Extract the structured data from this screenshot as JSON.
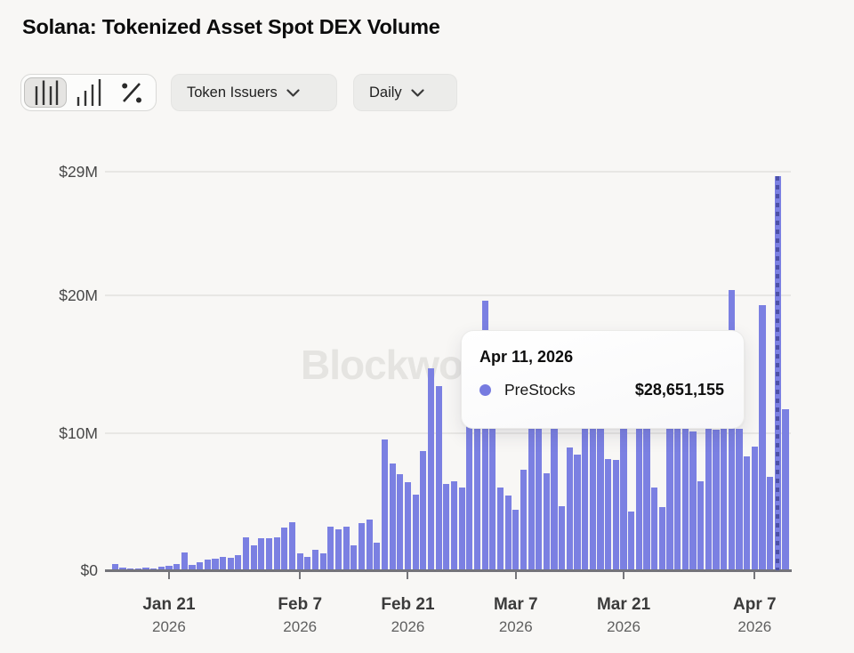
{
  "page": {
    "title": "Solana: Tokenized Asset Spot DEX Volume"
  },
  "toolbar": {
    "chart_type_toggle": {
      "options": [
        "grouped-bar-chart",
        "ascending-bar-chart",
        "percent-change"
      ],
      "selected": "grouped-bar-chart"
    },
    "token_issuers_label": "Token Issuers",
    "interval_label": "Daily"
  },
  "watermark": "Blockworks",
  "tooltip": {
    "date": "Apr 11, 2026",
    "series": "PreStocks",
    "value": "$28,651,155"
  },
  "colors": {
    "bar": "#7b80e2",
    "hover_dash": "#4d51a8",
    "accent_dot": "#767be0",
    "background": "#f8f7f5",
    "gridline": "#e8e7e4",
    "axis": "#74747a"
  },
  "chart_data": {
    "type": "bar",
    "title": "Solana: Tokenized Asset Spot DEX Volume",
    "x_unit": "day",
    "grid": "horizontal",
    "legend": "none",
    "ylim_m": [
      0,
      29
    ],
    "y_ticks": [
      {
        "label": "$0",
        "value_m": 0
      },
      {
        "label": "$10M",
        "value_m": 10
      },
      {
        "label": "$20M",
        "value_m": 20
      },
      {
        "label": "$29M",
        "value_m": 29
      }
    ],
    "x_ticks": [
      {
        "label": "Jan 21",
        "year": "2026",
        "bar_index": 7
      },
      {
        "label": "Feb 7",
        "year": "2026",
        "bar_index": 24
      },
      {
        "label": "Feb 21",
        "year": "2026",
        "bar_index": 38
      },
      {
        "label": "Mar 7",
        "year": "2026",
        "bar_index": 52
      },
      {
        "label": "Mar 21",
        "year": "2026",
        "bar_index": 66
      },
      {
        "label": "Apr 7",
        "year": "2026",
        "bar_index": 83
      }
    ],
    "series": [
      {
        "name": "PreStocks",
        "values_usd_millions": [
          0.45,
          0.2,
          0.1,
          0.15,
          0.2,
          0.15,
          0.25,
          0.3,
          0.45,
          1.3,
          0.4,
          0.6,
          0.75,
          0.85,
          1.0,
          0.9,
          1.1,
          2.4,
          1.8,
          2.3,
          2.35,
          2.4,
          3.1,
          3.5,
          1.2,
          1.0,
          1.5,
          1.2,
          3.2,
          3.0,
          3.2,
          1.8,
          3.4,
          3.7,
          2.0,
          9.5,
          7.8,
          7.0,
          6.4,
          5.5,
          8.7,
          14.7,
          13.4,
          6.3,
          6.5,
          6.0,
          10.8,
          10.6,
          19.6,
          11.0,
          6.05,
          5.45,
          4.4,
          7.3,
          10.8,
          11.0,
          7.05,
          10.7,
          4.65,
          8.95,
          8.4,
          10.9,
          11.1,
          10.8,
          8.1,
          8.0,
          10.8,
          4.3,
          11.0,
          10.7,
          6.0,
          4.6,
          10.9,
          11.2,
          10.4,
          10.1,
          6.5,
          10.3,
          10.2,
          10.4,
          20.4,
          10.3,
          8.3,
          9.0,
          19.3,
          6.8,
          28.651155,
          11.7
        ]
      }
    ],
    "hover": {
      "bar_index": 86,
      "date": "Apr 11, 2026",
      "series": "PreStocks",
      "value_usd": 28651155
    }
  }
}
